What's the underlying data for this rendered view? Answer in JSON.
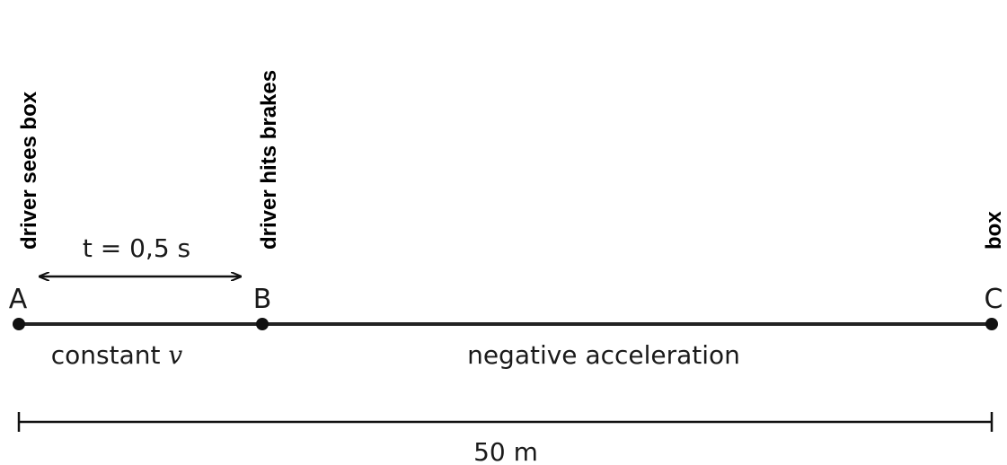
{
  "points": [
    {
      "id": "A",
      "label": "A",
      "event": "driver sees box"
    },
    {
      "id": "B",
      "label": "B",
      "event": "driver hits brakes"
    },
    {
      "id": "C",
      "label": "C",
      "event": "box"
    }
  ],
  "time_interval": {
    "label": "t = 0,5 s"
  },
  "segments": {
    "ab": {
      "label_text": "constant ",
      "label_var": "v"
    },
    "bc": {
      "label": "negative acceleration"
    }
  },
  "total_distance": {
    "label": "50 m"
  }
}
